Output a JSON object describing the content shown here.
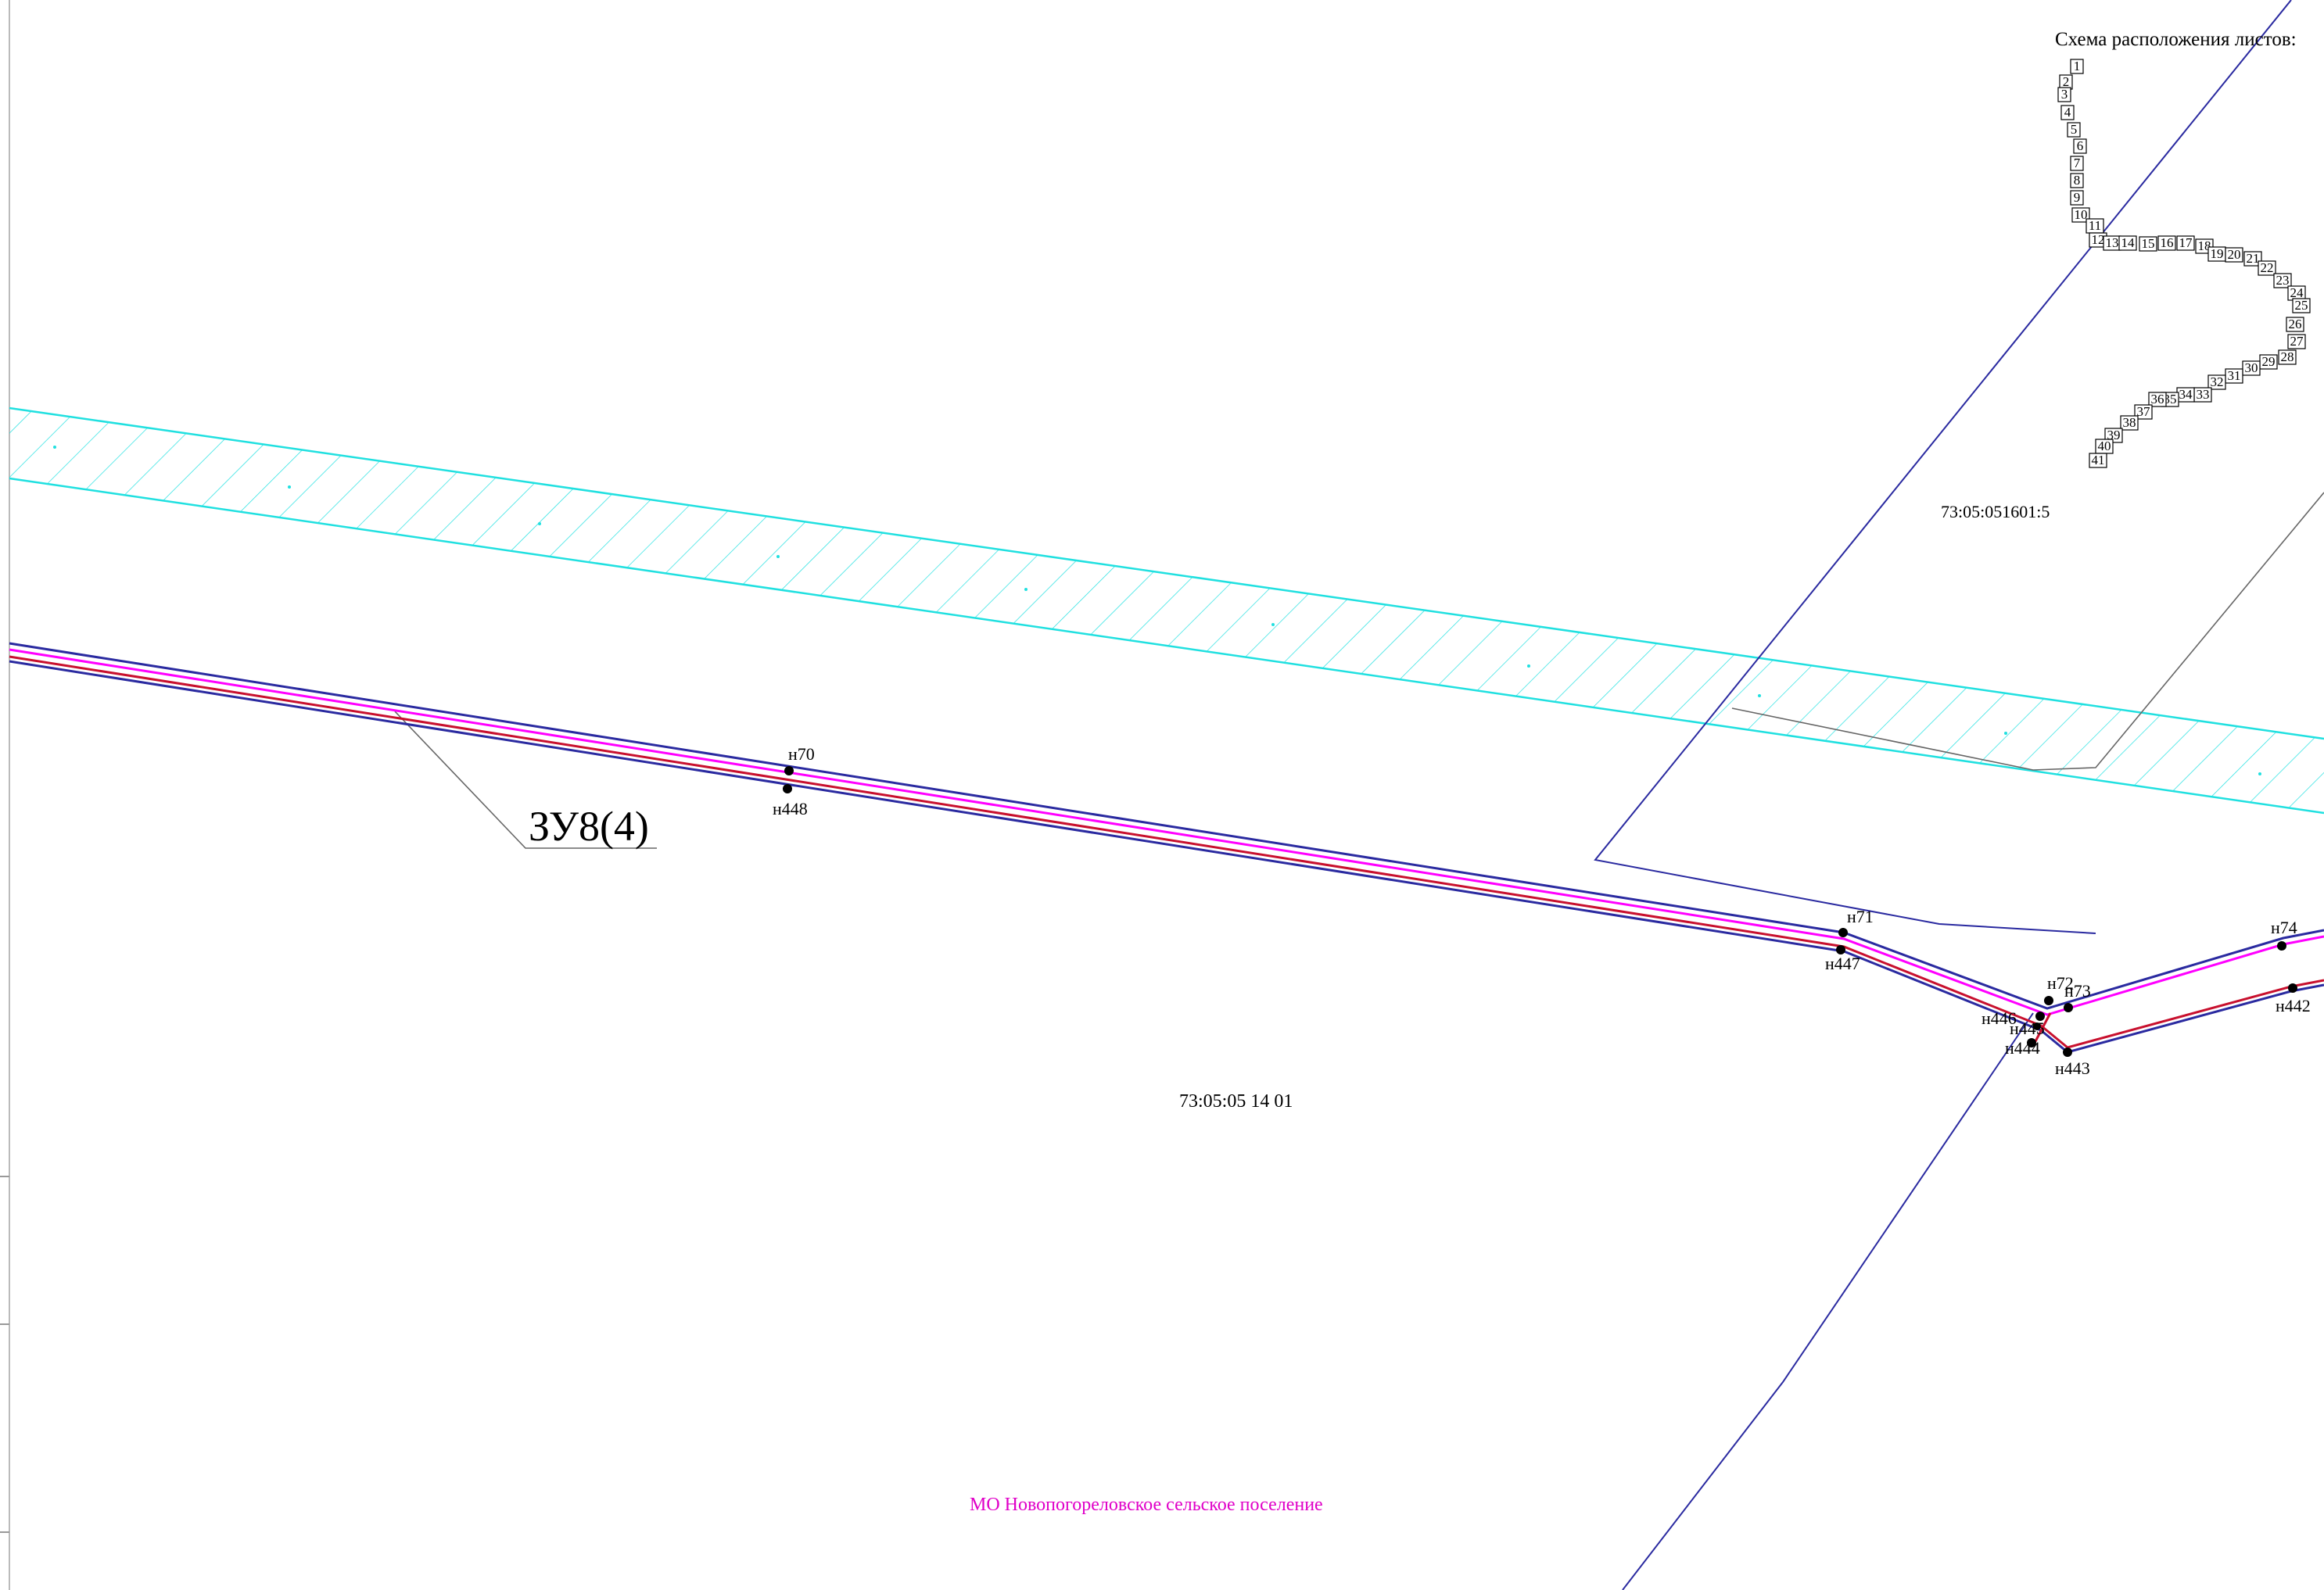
{
  "sheet_scheme": {
    "title": "Схема расположения листов:",
    "sheets": [
      "1",
      "2",
      "3",
      "4",
      "5",
      "6",
      "7",
      "8",
      "9",
      "10",
      "11",
      "12",
      "13",
      "14",
      "15",
      "16",
      "17",
      "18",
      "19",
      "20",
      "21",
      "22",
      "23",
      "24",
      "25",
      "26",
      "27",
      "28",
      "29",
      "30",
      "31",
      "32",
      "33",
      "34",
      "35",
      "36",
      "37",
      "38",
      "39",
      "40",
      "41"
    ]
  },
  "parcels": {
    "upper_right": "73:05:051601:5",
    "main_quarter": "73:05:05 14 01",
    "plot_label": "ЗУ8(4)"
  },
  "municipality": "МО Новопогореловское сельское поселение",
  "points": {
    "n70": "н70",
    "n448": "н448",
    "n71": "н71",
    "n447": "н447",
    "n72": "н72",
    "n73": "н73",
    "n446": "н446",
    "n445": "н445",
    "n444": "н444",
    "n443": "н443",
    "n74": "н74",
    "n442": "н442"
  },
  "colors": {
    "road_band": "#20e0e0",
    "boundary_blue": "#2a2aa0",
    "corridor_red": "#c8102e",
    "corridor_magenta": "#ff00ff",
    "municipality_text": "#e000c8"
  }
}
